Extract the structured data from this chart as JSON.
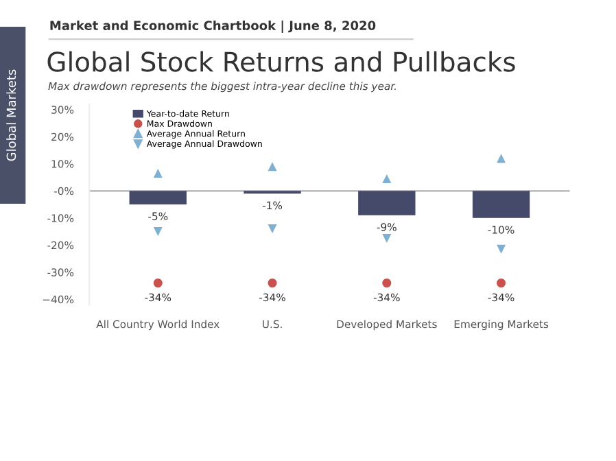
{
  "chart_data": {
    "type": "bar",
    "title": "Global Stock Returns and Pullbacks",
    "subtitle": "Max drawdown represents the biggest intra-year decline this year.",
    "annotations": [
      "Market and Economic Chartbook | June 8, 2020",
      "Global Markets"
    ],
    "categories": [
      "All Country World Index",
      "U.S.",
      "Developed Markets",
      "Emerging Markets"
    ],
    "series": [
      {
        "name": "Year-to-date Return",
        "color": "#454a6b",
        "values": [
          -5,
          -1,
          -9,
          -10
        ],
        "value_labels": [
          "-5%",
          "-1%",
          "-9%",
          "-10%"
        ]
      },
      {
        "name": "Max Drawdown",
        "type": "scatter",
        "marker": "circle",
        "color": "#c9524f",
        "values": [
          -34,
          -34,
          -34,
          -34
        ],
        "value_labels": [
          "-34%",
          "-34%",
          "-34%",
          "-34%"
        ]
      },
      {
        "name": "Average Annual Return",
        "type": "scatter",
        "marker": "triangle",
        "color": "#7fb0d1",
        "values": [
          6.5,
          9,
          4.5,
          12
        ]
      },
      {
        "name": "Average Annual Drawdown",
        "type": "scatter",
        "marker": "triangle_down",
        "color": "#7fb0d1",
        "values": [
          -15,
          -14,
          -17.5,
          -21.5
        ]
      }
    ],
    "ylim": [
      -42,
      32
    ],
    "yticks": [
      {
        "value": 30,
        "label": "30%"
      },
      {
        "value": 20,
        "label": "20%"
      },
      {
        "value": 10,
        "label": "10%"
      },
      {
        "value": 0,
        "label": "-0%"
      },
      {
        "value": -10,
        "label": "-10%"
      },
      {
        "value": -20,
        "label": "-20%"
      },
      {
        "value": -30,
        "label": "-30%"
      },
      {
        "value": -40,
        "label": "−40%"
      }
    ],
    "ref_lines": [
      {
        "axis": "y",
        "value": 0,
        "color": "#b0b0b0"
      }
    ],
    "grid": false,
    "legend": "top left"
  }
}
